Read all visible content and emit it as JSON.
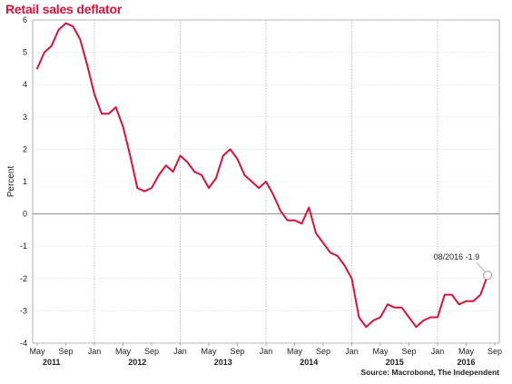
{
  "chart_data": {
    "type": "line",
    "title": "Retail sales deflator",
    "ylabel": "Percent",
    "xlabel": "",
    "ylim": [
      -4,
      6
    ],
    "yticks": [
      6,
      5,
      4,
      3,
      2,
      1,
      0,
      -1,
      -2,
      -3,
      -4
    ],
    "grid": true,
    "legend": "none",
    "x_start": "2011-05",
    "x_end": "2016-09",
    "month_ticks": [
      {
        "date": "2011-05",
        "label": "May"
      },
      {
        "date": "2011-09",
        "label": "Sep"
      },
      {
        "date": "2012-01",
        "label": "Jan"
      },
      {
        "date": "2012-05",
        "label": "May"
      },
      {
        "date": "2012-09",
        "label": "Sep"
      },
      {
        "date": "2013-01",
        "label": "Jan"
      },
      {
        "date": "2013-05",
        "label": "May"
      },
      {
        "date": "2013-09",
        "label": "Sep"
      },
      {
        "date": "2014-01",
        "label": "Jan"
      },
      {
        "date": "2014-05",
        "label": "May"
      },
      {
        "date": "2014-09",
        "label": "Sep"
      },
      {
        "date": "2015-01",
        "label": "Jan"
      },
      {
        "date": "2015-05",
        "label": "May"
      },
      {
        "date": "2015-09",
        "label": "Sep"
      },
      {
        "date": "2016-01",
        "label": "Jan"
      },
      {
        "date": "2016-05",
        "label": "May"
      },
      {
        "date": "2016-09",
        "label": "Sep"
      }
    ],
    "year_labels": [
      {
        "date": "2011-07",
        "label": "2011"
      },
      {
        "date": "2012-07",
        "label": "2012"
      },
      {
        "date": "2013-07",
        "label": "2013"
      },
      {
        "date": "2014-07",
        "label": "2014"
      },
      {
        "date": "2015-07",
        "label": "2015"
      },
      {
        "date": "2016-05",
        "label": "2016"
      }
    ],
    "year_gridlines": [
      "2012-01",
      "2013-01",
      "2014-01",
      "2015-01",
      "2016-01"
    ],
    "series": [
      {
        "color": "#d6133d",
        "x": [
          "2011-05",
          "2011-06",
          "2011-07",
          "2011-08",
          "2011-09",
          "2011-10",
          "2011-11",
          "2011-12",
          "2012-01",
          "2012-02",
          "2012-03",
          "2012-04",
          "2012-05",
          "2012-06",
          "2012-07",
          "2012-08",
          "2012-09",
          "2012-10",
          "2012-11",
          "2012-12",
          "2013-01",
          "2013-02",
          "2013-03",
          "2013-04",
          "2013-05",
          "2013-06",
          "2013-07",
          "2013-08",
          "2013-09",
          "2013-10",
          "2013-11",
          "2013-12",
          "2014-01",
          "2014-02",
          "2014-03",
          "2014-04",
          "2014-05",
          "2014-06",
          "2014-07",
          "2014-08",
          "2014-09",
          "2014-10",
          "2014-11",
          "2014-12",
          "2015-01",
          "2015-02",
          "2015-03",
          "2015-04",
          "2015-05",
          "2015-06",
          "2015-07",
          "2015-08",
          "2015-09",
          "2015-10",
          "2015-11",
          "2015-12",
          "2016-01",
          "2016-02",
          "2016-03",
          "2016-04",
          "2016-05",
          "2016-06",
          "2016-07",
          "2016-08"
        ],
        "y": [
          4.5,
          5.0,
          5.2,
          5.7,
          5.9,
          5.8,
          5.4,
          4.6,
          3.7,
          3.1,
          3.1,
          3.3,
          2.7,
          1.8,
          0.8,
          0.7,
          0.8,
          1.2,
          1.5,
          1.3,
          1.8,
          1.6,
          1.3,
          1.2,
          0.8,
          1.1,
          1.8,
          2.0,
          1.7,
          1.2,
          1.0,
          0.8,
          1.0,
          0.6,
          0.1,
          -0.2,
          -0.2,
          -0.3,
          0.2,
          -0.6,
          -0.9,
          -1.2,
          -1.3,
          -1.6,
          -2.0,
          -3.2,
          -3.5,
          -3.3,
          -3.2,
          -2.8,
          -2.9,
          -2.9,
          -3.2,
          -3.5,
          -3.3,
          -3.2,
          -3.2,
          -2.5,
          -2.5,
          -2.8,
          -2.7,
          -2.7,
          -2.5,
          -1.9
        ]
      }
    ],
    "annotation": {
      "text": "08/2016 -1.9",
      "date": "2016-08",
      "value": -1.9
    }
  },
  "source": "Source: Macrobond, The Independent"
}
